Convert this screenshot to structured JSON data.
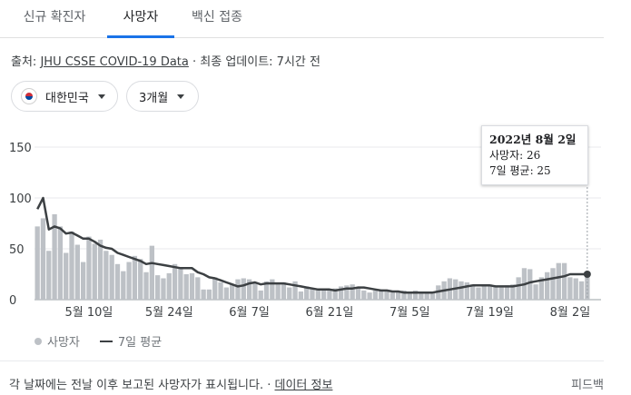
{
  "tabs": [
    {
      "label": "신규 확진자"
    },
    {
      "label": "사망자"
    },
    {
      "label": "백신 접종"
    }
  ],
  "source": {
    "prefix": "출처:",
    "link": "JHU CSSE COVID-19 Data",
    "suffix": "· 최종 업데이트: 7시간 전"
  },
  "filters": {
    "region": "대한민국",
    "range": "3개월"
  },
  "tooltip": {
    "date": "2022년 8월 2일",
    "deaths": "사망자: 26",
    "avg": "7일 평균: 25"
  },
  "legend": {
    "bars": "사망자",
    "line": "7일 평균"
  },
  "footer": {
    "text": "각 날짜에는 전날 이후 보고된 사망자가 표시됩니다. ·",
    "link": "데이터 정보",
    "feedback": "피드백"
  },
  "colors": {
    "bar": "#bdc1c6",
    "line": "#3c4043",
    "active_tab": "#1a73e8"
  },
  "chart_data": {
    "type": "bar",
    "title": "",
    "xlabel": "",
    "ylabel": "",
    "ylim": [
      0,
      150
    ],
    "yticks": [
      0,
      50,
      100,
      150
    ],
    "xticks": [
      {
        "day": 9,
        "label": "5월 10일"
      },
      {
        "day": 23,
        "label": "5월 24일"
      },
      {
        "day": 37,
        "label": "6월 7일"
      },
      {
        "day": 51,
        "label": "6월 21일"
      },
      {
        "day": 65,
        "label": "7월 5일"
      },
      {
        "day": 79,
        "label": "7월 19일"
      },
      {
        "day": 93,
        "label": "8월 2일"
      }
    ],
    "start_date": "2022-05-01",
    "end_date": "2022-08-02",
    "series": [
      {
        "name": "사망자",
        "type": "bar",
        "values": [
          72,
          80,
          48,
          84,
          72,
          46,
          67,
          54,
          37,
          62,
          55,
          59,
          48,
          44,
          35,
          28,
          37,
          43,
          40,
          27,
          53,
          24,
          21,
          26,
          35,
          32,
          25,
          26,
          22,
          10,
          10,
          22,
          17,
          12,
          15,
          20,
          21,
          20,
          17,
          9,
          18,
          20,
          16,
          17,
          12,
          18,
          8,
          13,
          11,
          11,
          10,
          9,
          11,
          13,
          14,
          15,
          12,
          9,
          7,
          9,
          10,
          8,
          7,
          8,
          9,
          8,
          9,
          8,
          7,
          8,
          14,
          18,
          21,
          20,
          18,
          17,
          15,
          12,
          14,
          15,
          13,
          12,
          14,
          15,
          22,
          31,
          30,
          15,
          22,
          27,
          31,
          36,
          36,
          22,
          21,
          18,
          26
        ]
      },
      {
        "name": "7일 평균",
        "type": "line",
        "values": [
          89,
          100,
          69,
          72,
          70,
          65,
          66,
          63,
          60,
          60,
          57,
          53,
          51,
          50,
          46,
          44,
          42,
          40,
          38,
          35,
          36,
          35,
          34,
          33,
          32,
          31,
          31,
          31,
          27,
          25,
          22,
          21,
          19,
          17,
          15,
          13,
          14,
          16,
          17,
          15,
          16,
          16,
          16,
          16,
          15,
          14,
          13,
          12,
          11,
          10,
          10,
          10,
          9,
          10,
          11,
          11,
          12,
          12,
          11,
          10,
          9,
          9,
          8,
          8,
          7,
          7,
          7,
          7,
          7,
          7,
          8,
          9,
          10,
          11,
          12,
          13,
          14,
          14,
          14,
          14,
          13,
          13,
          13,
          13,
          14,
          15,
          17,
          18,
          19,
          20,
          21,
          22,
          23,
          25,
          25,
          25,
          25
        ]
      }
    ]
  }
}
